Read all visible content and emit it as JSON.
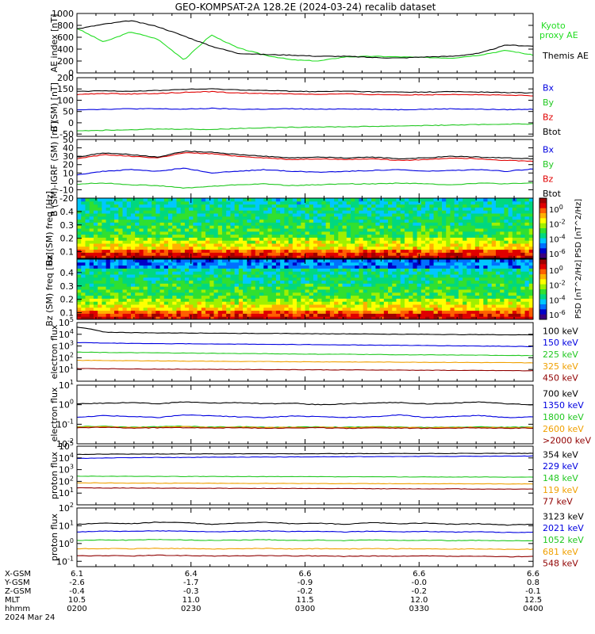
{
  "title": "GEO-KOMPSAT-2A 128.2E (2024-03-24) recalib dataset",
  "colors": {
    "black": "#000000",
    "blue": "#0000e0",
    "green": "#22c822",
    "red": "#e00000",
    "orange": "#f0a000",
    "darkred": "#900000",
    "kyoto": "#22dd22"
  },
  "chart_data": [
    {
      "type": "line",
      "panel": "ae",
      "ylabel": "AE index [nT]",
      "ylim": [
        0,
        1000
      ],
      "yticks": [
        "0",
        "200",
        "400",
        "600",
        "800",
        "1000"
      ],
      "legend": [
        "Kyoto proxy AE",
        "Themis AE"
      ],
      "series": [
        {
          "name": "Kyoto proxy AE",
          "color": "#22dd22",
          "values": [
            750,
            520,
            690,
            570,
            220,
            640,
            420,
            300,
            220,
            200,
            270,
            280,
            270,
            260,
            250,
            300,
            380,
            300
          ]
        },
        {
          "name": "Themis AE",
          "color": "#000000",
          "values": [
            740,
            820,
            880,
            780,
            620,
            450,
            330,
            310,
            300,
            280,
            280,
            260,
            250,
            270,
            280,
            330,
            470,
            450
          ]
        }
      ]
    },
    {
      "type": "line",
      "panel": "b_sm",
      "ylabel": "B (SM) [nT]",
      "ylim": [
        -60,
        200
      ],
      "yticks": [
        "-50",
        "0",
        "50",
        "100",
        "150",
        "200"
      ],
      "legend": [
        "Bx",
        "By",
        "Bz",
        "Btot"
      ],
      "series": [
        {
          "name": "Bx",
          "color": "#0000e0",
          "values": [
            58,
            60,
            62,
            62,
            60,
            64,
            60,
            60,
            62,
            60,
            62,
            60,
            58,
            60,
            62,
            60,
            58,
            60
          ]
        },
        {
          "name": "By",
          "color": "#22c822",
          "values": [
            -35,
            -33,
            -30,
            -28,
            -28,
            -30,
            -25,
            -22,
            -20,
            -18,
            -18,
            -16,
            -14,
            -12,
            -10,
            -8,
            -6,
            -5
          ]
        },
        {
          "name": "Bz",
          "color": "#e00000",
          "values": [
            125,
            130,
            128,
            130,
            135,
            138,
            132,
            130,
            128,
            126,
            128,
            125,
            124,
            124,
            126,
            124,
            122,
            120
          ]
        },
        {
          "name": "Btot",
          "color": "#000000",
          "values": [
            138,
            142,
            140,
            143,
            148,
            150,
            146,
            143,
            140,
            138,
            140,
            137,
            136,
            136,
            138,
            136,
            134,
            132
          ]
        }
      ]
    },
    {
      "type": "line",
      "panel": "b_sm_igrf",
      "ylabel": "B (SM)-IGRF (SM) [nT]",
      "ylim": [
        -20,
        50
      ],
      "yticks": [
        "-20",
        "-10",
        "0",
        "10",
        "20",
        "30",
        "40",
        "50"
      ],
      "legend": [
        "Bx",
        "By",
        "Bz",
        "Btot"
      ],
      "series": [
        {
          "name": "Bx",
          "color": "#0000e0",
          "values": [
            8,
            12,
            14,
            12,
            16,
            10,
            12,
            14,
            12,
            11,
            12,
            13,
            14,
            12,
            13,
            14,
            12,
            15
          ]
        },
        {
          "name": "By",
          "color": "#22c822",
          "values": [
            -3,
            -2,
            -4,
            -5,
            -8,
            -6,
            -4,
            -3,
            -5,
            -4,
            -3,
            -3,
            -2,
            -3,
            -4,
            -2,
            -3,
            -2
          ]
        },
        {
          "name": "Bz",
          "color": "#e00000",
          "values": [
            27,
            32,
            30,
            28,
            34,
            33,
            30,
            28,
            26,
            27,
            26,
            27,
            25,
            26,
            28,
            27,
            25,
            24
          ]
        },
        {
          "name": "Btot",
          "color": "#000000",
          "values": [
            29,
            34,
            32,
            29,
            36,
            35,
            32,
            30,
            28,
            29,
            28,
            29,
            27,
            28,
            30,
            29,
            28,
            27
          ]
        }
      ]
    },
    {
      "type": "heatmap",
      "panel": "bx_spec",
      "ylabel": "Bx (SM) freq [Hz]",
      "ylim": [
        0.05,
        0.5
      ],
      "yticks": [
        "0.1",
        "0.2",
        "0.3",
        "0.4"
      ],
      "colorbar_label": "PSD [nT^2/Hz]",
      "colorbar_ticks": [
        "10^0",
        "10^-2",
        "10^-4",
        "10^-6"
      ]
    },
    {
      "type": "heatmap",
      "panel": "bz_spec",
      "ylabel": "Bz (SM) freq [Hz]",
      "ylim": [
        0.05,
        0.5
      ],
      "yticks": [
        "0.1",
        "0.2",
        "0.3",
        "0.4"
      ],
      "colorbar_label": "PSD [nT^2/Hz]",
      "colorbar_ticks": [
        "10^0",
        "10^-2",
        "10^-4",
        "10^-6"
      ]
    },
    {
      "type": "line",
      "panel": "electron_low",
      "ylabel": "electron flux",
      "yscale": "log",
      "ylim": [
        1,
        100000
      ],
      "yticks": [
        "10^1",
        "10^2",
        "10^3",
        "10^4",
        "10^5"
      ],
      "legend": [
        "100 keV",
        "150 keV",
        "225 keV",
        "325 keV",
        "450 keV"
      ],
      "series": [
        {
          "name": "100 keV",
          "color": "#000000",
          "values": [
            40000,
            15000,
            14000,
            13000,
            13000,
            12500,
            12000,
            12000,
            11500,
            11000,
            11000,
            10500,
            10000,
            10000,
            9500,
            9500,
            9000,
            9000
          ]
        },
        {
          "name": "150 keV",
          "color": "#0000e0",
          "values": [
            2000,
            1800,
            1700,
            1600,
            1550,
            1500,
            1450,
            1400,
            1350,
            1300,
            1250,
            1200,
            1150,
            1100,
            1050,
            1000,
            950,
            900
          ]
        },
        {
          "name": "225 keV",
          "color": "#22c822",
          "values": [
            300,
            280,
            270,
            260,
            250,
            240,
            230,
            220,
            210,
            200,
            200,
            190,
            180,
            175,
            170,
            165,
            160,
            150
          ]
        },
        {
          "name": "325 keV",
          "color": "#f0a000",
          "values": [
            60,
            58,
            56,
            54,
            52,
            50,
            48,
            47,
            46,
            45,
            44,
            43,
            42,
            41,
            40,
            39,
            38,
            37
          ]
        },
        {
          "name": "450 keV",
          "color": "#900000",
          "values": [
            12,
            11.5,
            11,
            10.8,
            10.5,
            10.2,
            10,
            9.8,
            9.6,
            9.4,
            9.2,
            9,
            8.8,
            8.6,
            8.4,
            8.2,
            8,
            7.8
          ]
        }
      ]
    },
    {
      "type": "line",
      "panel": "electron_high",
      "ylabel": "electron flux",
      "yscale": "log",
      "ylim": [
        0.01,
        10
      ],
      "yticks": [
        "10^-2",
        "10^-1",
        "10^0",
        "10^1"
      ],
      "legend": [
        "700 keV",
        "1350 keV",
        "1800 keV",
        "2600 keV",
        ">2000 keV"
      ],
      "series": [
        {
          "name": "700 keV",
          "color": "#000000",
          "values": [
            1.1,
            1.2,
            1.3,
            1.1,
            1.4,
            1.2,
            1.3,
            1.1,
            1.2,
            1.0,
            1.1,
            1.2,
            1.3,
            1.1,
            1.2,
            1.4,
            1.1,
            1.0
          ]
        },
        {
          "name": "1350 keV",
          "color": "#0000e0",
          "values": [
            0.22,
            0.28,
            0.25,
            0.22,
            0.3,
            0.27,
            0.24,
            0.22,
            0.26,
            0.25,
            0.22,
            0.24,
            0.3,
            0.22,
            0.25,
            0.28,
            0.22,
            0.24
          ]
        },
        {
          "name": "1800 keV",
          "color": "#22c822",
          "values": [
            0.075,
            0.08,
            0.07,
            0.075,
            0.08,
            0.072,
            0.075,
            0.07,
            0.072,
            0.074,
            0.07,
            0.075,
            0.072,
            0.07,
            0.072,
            0.075,
            0.07,
            0.072
          ]
        },
        {
          "name": "2600 keV",
          "color": "#f0a000",
          "values": [
            0.07,
            0.075,
            0.068,
            0.07,
            0.074,
            0.068,
            0.07,
            0.067,
            0.069,
            0.07,
            0.066,
            0.07,
            0.068,
            0.066,
            0.068,
            0.07,
            0.066,
            0.068
          ]
        },
        {
          "name": ">2000 keV",
          "color": "#900000",
          "values": [
            0.065,
            0.07,
            0.064,
            0.066,
            0.068,
            0.064,
            0.066,
            0.063,
            0.065,
            0.066,
            0.062,
            0.066,
            0.064,
            0.062,
            0.064,
            0.066,
            0.062,
            0.064
          ]
        }
      ]
    },
    {
      "type": "line",
      "panel": "proton_low",
      "ylabel": "proton flux",
      "yscale": "log",
      "ylim": [
        1,
        100000
      ],
      "yticks": [
        "10^1",
        "10^2",
        "10^3",
        "10^4",
        "10^5"
      ],
      "legend": [
        "354 keV",
        "229 keV",
        "148 keV",
        "119 keV",
        "77 keV"
      ],
      "series": [
        {
          "name": "354 keV",
          "color": "#000000",
          "values": [
            20000,
            21000,
            21000,
            21500,
            22000,
            22000,
            22000,
            22500,
            22500,
            23000,
            23000,
            23000,
            23500,
            23500,
            24000,
            24000,
            24500,
            24500
          ]
        },
        {
          "name": "229 keV",
          "color": "#0000e0",
          "values": [
            9000,
            10000,
            10500,
            11000,
            11000,
            11500,
            11500,
            12000,
            12000,
            12500,
            12500,
            13000,
            13000,
            13500,
            13500,
            14000,
            14000,
            14500
          ]
        },
        {
          "name": "148 keV",
          "color": "#22c822",
          "values": [
            280,
            270,
            270,
            265,
            260,
            260,
            255,
            255,
            250,
            250,
            245,
            245,
            240,
            240,
            235,
            235,
            230,
            230
          ]
        },
        {
          "name": "119 keV",
          "color": "#f0a000",
          "values": [
            75,
            73,
            72,
            70,
            70,
            69,
            68,
            67,
            66,
            66,
            65,
            64,
            64,
            63,
            62,
            62,
            61,
            60
          ]
        },
        {
          "name": "77 keV",
          "color": "#900000",
          "values": [
            28,
            27,
            27,
            26,
            26,
            26,
            25,
            25,
            25,
            24,
            24,
            24,
            23,
            23,
            23,
            22,
            22,
            22
          ]
        }
      ]
    },
    {
      "type": "line",
      "panel": "proton_high",
      "ylabel": "proton flux",
      "yscale": "log",
      "ylim": [
        0.05,
        100
      ],
      "yticks": [
        "10^-1",
        "10^0",
        "10^1",
        "10^2"
      ],
      "legend": [
        "3123 keV",
        "2021 keV",
        "1052 keV",
        "681 keV",
        "548 keV"
      ],
      "series": [
        {
          "name": "3123 keV",
          "color": "#000000",
          "values": [
            12,
            14,
            13,
            16,
            15,
            12,
            14,
            16,
            13,
            14,
            12,
            15,
            13,
            14,
            12,
            13,
            11,
            12
          ]
        },
        {
          "name": "2021 keV",
          "color": "#0000e0",
          "values": [
            4.5,
            5,
            4.8,
            5.2,
            5,
            4.6,
            4.8,
            5.2,
            4.7,
            4.9,
            4.5,
            5,
            4.6,
            4.8,
            4.4,
            4.6,
            4.2,
            4.4
          ]
        },
        {
          "name": "1052 keV",
          "color": "#22c822",
          "values": [
            1.5,
            1.6,
            1.55,
            1.7,
            1.6,
            1.5,
            1.55,
            1.65,
            1.5,
            1.55,
            1.45,
            1.6,
            1.5,
            1.55,
            1.45,
            1.5,
            1.4,
            1.45
          ]
        },
        {
          "name": "681 keV",
          "color": "#f0a000",
          "values": [
            0.5,
            0.52,
            0.5,
            0.54,
            0.52,
            0.5,
            0.51,
            0.53,
            0.5,
            0.51,
            0.49,
            0.52,
            0.5,
            0.51,
            0.48,
            0.5,
            0.47,
            0.48
          ]
        },
        {
          "name": "548 keV",
          "color": "#900000",
          "values": [
            0.2,
            0.21,
            0.2,
            0.22,
            0.21,
            0.2,
            0.2,
            0.21,
            0.2,
            0.2,
            0.19,
            0.2,
            0.19,
            0.2,
            0.19,
            0.19,
            0.18,
            0.19
          ]
        }
      ]
    }
  ],
  "xaxis": {
    "row_labels": [
      "X-GSM",
      "Y-GSM",
      "Z-GSM",
      "MLT",
      "hhmm",
      "2024 Mar 24"
    ],
    "ticks": [
      {
        "values": [
          "6.1",
          "-2.6",
          "-0.4",
          "10.5",
          "0200"
        ]
      },
      {
        "values": [
          "6.4",
          "-1.7",
          "-0.3",
          "11.0",
          "0230"
        ]
      },
      {
        "values": [
          "6.6",
          "-0.9",
          "-0.2",
          "11.5",
          "0300"
        ]
      },
      {
        "values": [
          "6.6",
          "-0.0",
          "-0.2",
          "12.0",
          "0330"
        ]
      },
      {
        "values": [
          "6.6",
          "0.8",
          "-0.1",
          "12.5",
          "0400"
        ]
      }
    ]
  }
}
